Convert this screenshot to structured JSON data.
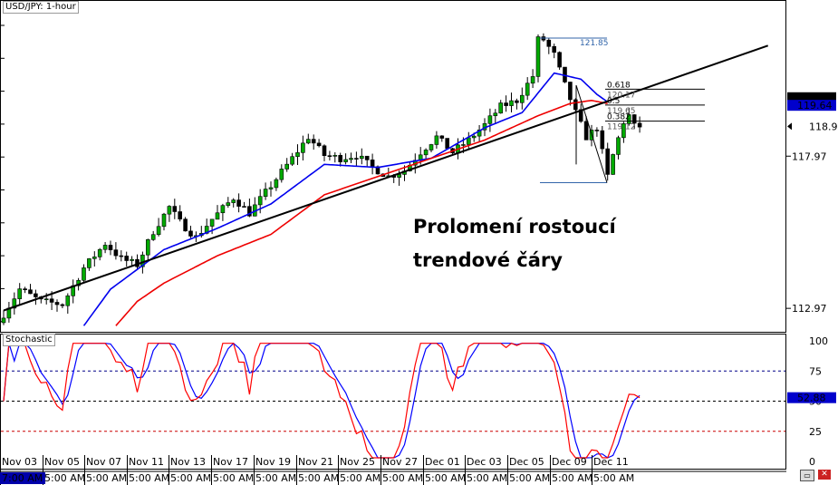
{
  "chart_data": {
    "type": "candlestick",
    "title": "USD/JPY: 1-hour",
    "price_axis": {
      "ylim": [
        112.2,
        123.1
      ],
      "tick_labels": [
        "117.97",
        "112.97"
      ],
      "current_price": "118.95",
      "ma_labels": [
        {
          "value": "119.89",
          "color": "#000000"
        },
        {
          "value": "119.64",
          "color": "#0000cc"
        }
      ]
    },
    "x_tick_dates": [
      "Nov 03",
      "Nov 05",
      "Nov 07",
      "Nov 11",
      "Nov 13",
      "Nov 17",
      "Nov 19",
      "Nov 21",
      "Nov 25",
      "Nov 27",
      "Dec 01",
      "Dec 03",
      "Dec 05",
      "Dec 09",
      "Dec 11"
    ],
    "x_tick_times": [
      "7:00 AM",
      "5:00 AM",
      "5:00 AM",
      "5:00 AM",
      "5:00 AM",
      "5:00 AM",
      "5:00 AM",
      "5:00 AM",
      "5:00 AM",
      "5:00 AM",
      "5:00 AM",
      "5:00 AM",
      "5:00 AM",
      "5:00 AM",
      "5:00 AM"
    ],
    "price_path_keypoints": [
      [
        0,
        112.5
      ],
      [
        4,
        113.6
      ],
      [
        8,
        113.2
      ],
      [
        12,
        113.1
      ],
      [
        16,
        114.3
      ],
      [
        20,
        115.1
      ],
      [
        23,
        114.6
      ],
      [
        26,
        114.4
      ],
      [
        29,
        115.5
      ],
      [
        32,
        116.3
      ],
      [
        34,
        115.8
      ],
      [
        37,
        115.3
      ],
      [
        40,
        115.9
      ],
      [
        44,
        116.6
      ],
      [
        47,
        116.1
      ],
      [
        51,
        117.0
      ],
      [
        55,
        117.9
      ],
      [
        58,
        118.6
      ],
      [
        61,
        118.0
      ],
      [
        64,
        117.9
      ],
      [
        67,
        118.0
      ],
      [
        70,
        117.6
      ],
      [
        73,
        117.3
      ],
      [
        76,
        117.5
      ],
      [
        79,
        118.1
      ],
      [
        82,
        118.6
      ],
      [
        85,
        118.1
      ],
      [
        88,
        118.5
      ],
      [
        91,
        119.0
      ],
      [
        94,
        119.6
      ],
      [
        97,
        119.8
      ],
      [
        100,
        120.6
      ],
      [
        101,
        121.8
      ],
      [
        102,
        121.8
      ],
      [
        104,
        121.3
      ],
      [
        106,
        120.3
      ],
      [
        108,
        119.4
      ],
      [
        110,
        118.6
      ],
      [
        112,
        118.9
      ],
      [
        114,
        117.3
      ],
      [
        115,
        118.0
      ],
      [
        117,
        119.1
      ],
      [
        118,
        119.3
      ],
      [
        119,
        118.95
      ]
    ],
    "candle_count": 120,
    "moving_averages": [
      {
        "color": "#0000ee",
        "period_desc": "blue MA",
        "keypoints": [
          [
            15,
            112.4
          ],
          [
            20,
            113.6
          ],
          [
            30,
            114.9
          ],
          [
            40,
            115.6
          ],
          [
            50,
            116.4
          ],
          [
            60,
            117.7
          ],
          [
            70,
            117.6
          ],
          [
            80,
            117.9
          ],
          [
            90,
            118.9
          ],
          [
            97,
            119.4
          ],
          [
            103,
            120.7
          ],
          [
            108,
            120.5
          ],
          [
            111,
            120.0
          ],
          [
            113,
            119.75
          ]
        ]
      },
      {
        "color": "#ee0000",
        "period_desc": "red MA",
        "keypoints": [
          [
            21,
            112.4
          ],
          [
            25,
            113.2
          ],
          [
            30,
            113.8
          ],
          [
            40,
            114.7
          ],
          [
            50,
            115.4
          ],
          [
            60,
            116.7
          ],
          [
            70,
            117.3
          ],
          [
            80,
            117.9
          ],
          [
            90,
            118.5
          ],
          [
            100,
            119.3
          ],
          [
            106,
            119.7
          ],
          [
            110,
            119.8
          ],
          [
            113,
            119.7
          ]
        ]
      }
    ],
    "trendline": {
      "start": [
        0,
        112.9
      ],
      "end": [
        143,
        121.6
      ],
      "color": "#000000"
    },
    "fibonacci": {
      "high_label": "121.85",
      "levels": [
        {
          "label": "0.618",
          "value": "120.17"
        },
        {
          "label": "0.5",
          "value": "119.65"
        },
        {
          "label": "0.382",
          "value": "119.12"
        }
      ]
    },
    "annotation": [
      "Prolomení rostoucí",
      "trendové čáry"
    ],
    "stochastic": {
      "title": "Stochastic",
      "ylim": [
        0,
        100
      ],
      "tick_labels": [
        "100",
        "75",
        "50",
        "25",
        "0"
      ],
      "levels": [
        75,
        50,
        25
      ],
      "current_value": "52.88",
      "k_color": "#ff0000",
      "d_color": "#0000ff"
    }
  },
  "colors": {
    "bull_body": "#00aa00",
    "bear_body": "#000000",
    "grid": "#000000",
    "level_line": "#000000"
  },
  "status_bar": {
    "left_text": "7:00 AM"
  }
}
